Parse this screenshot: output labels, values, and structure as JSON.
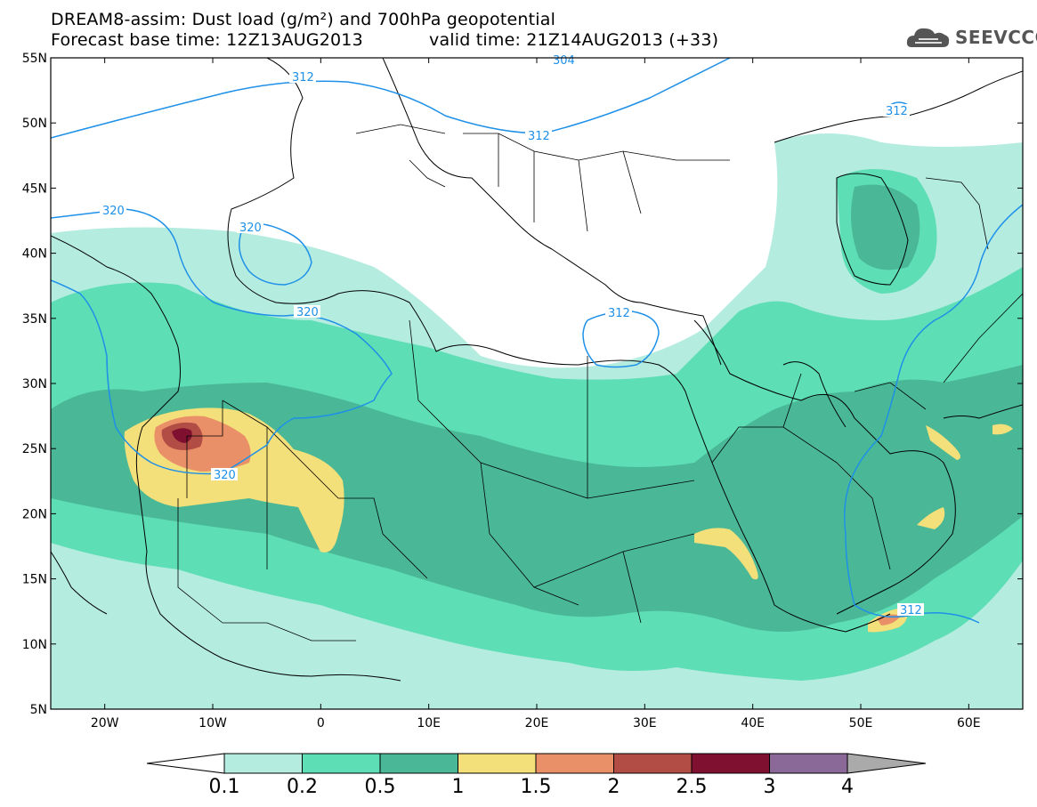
{
  "title": {
    "line1": "DREAM8-assim: Dust load (g/m²) and 700hPa geopotential",
    "base_time": "Forecast base time: 12Z13AUG2013",
    "valid_time": "valid time: 21Z14AUG2013 (+33)"
  },
  "logo": {
    "text": "SEEVCCC",
    "icon": "cloud-logo-icon"
  },
  "map": {
    "lon_range": [
      -25,
      65
    ],
    "lat_range": [
      5,
      55
    ],
    "lat_ticks": [
      "55N",
      "50N",
      "45N",
      "40N",
      "35N",
      "30N",
      "25N",
      "20N",
      "15N",
      "10N",
      "5N"
    ],
    "lon_ticks": [
      "20W",
      "10W",
      "0",
      "10E",
      "20E",
      "30E",
      "40E",
      "50E",
      "60E"
    ],
    "contour_labels": [
      "312",
      "312",
      "312",
      "312",
      "320",
      "320",
      "320",
      "320",
      "304",
      "312"
    ]
  },
  "colorbar": {
    "labels": [
      "0.1",
      "0.2",
      "0.5",
      "1",
      "1.5",
      "2",
      "2.5",
      "3",
      "4"
    ],
    "colors": [
      "#b5ece0",
      "#5ddeb4",
      "#4ab896",
      "#f4e07a",
      "#ea9068",
      "#b24d45",
      "#80102f",
      "#8a6898",
      "#aaaaaa"
    ]
  }
}
